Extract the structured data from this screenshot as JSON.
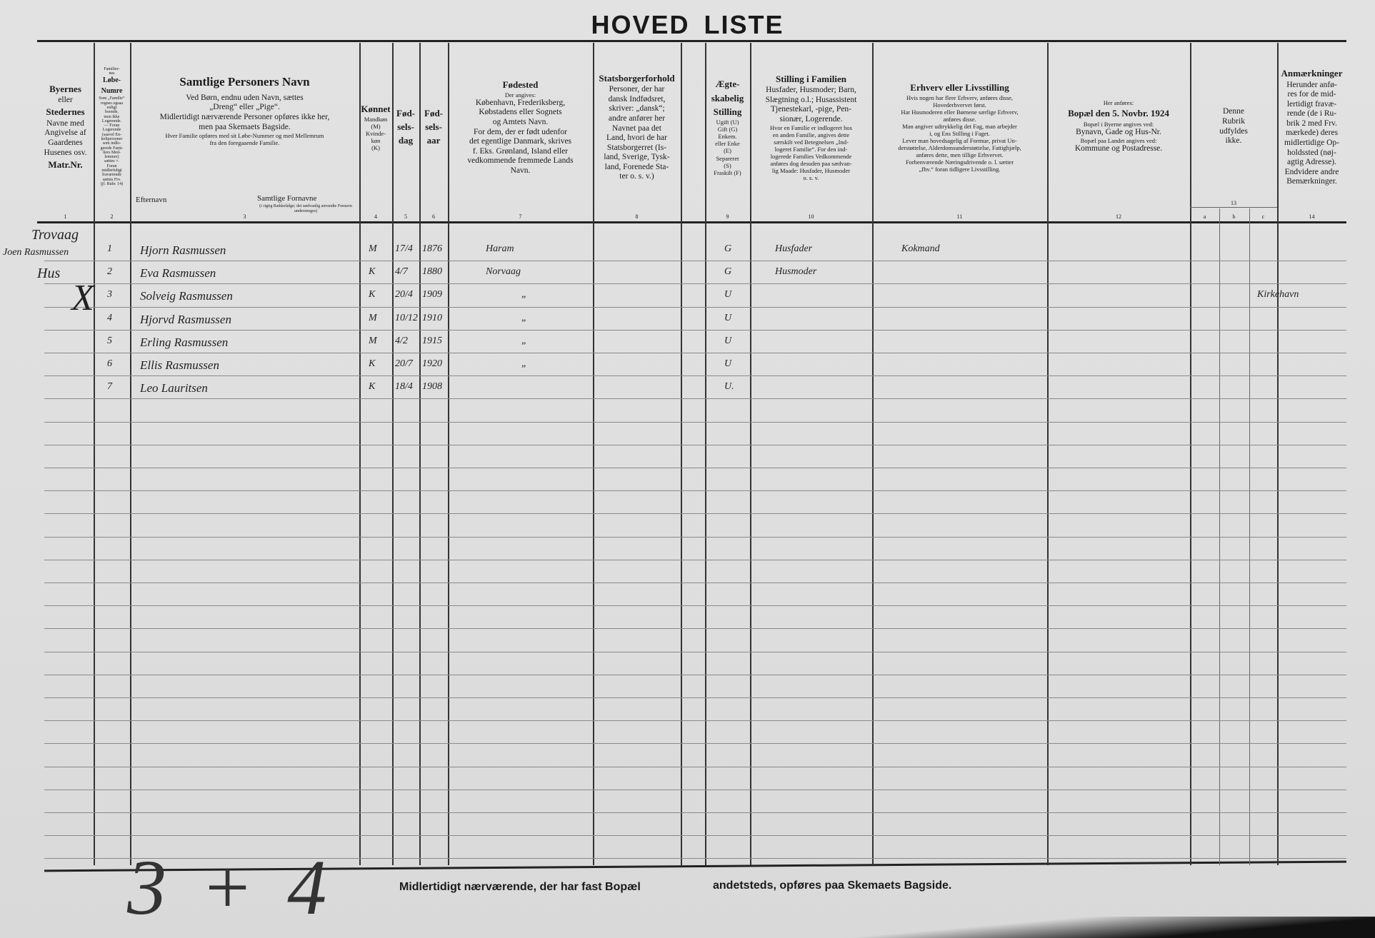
{
  "title": [
    "HOVED",
    "LISTE"
  ],
  "columns": [
    {
      "num": "1",
      "lines": [
        {
          "t": "Byernes",
          "s": "b"
        },
        "eller",
        {
          "t": "Stedernes",
          "s": "b"
        },
        "Navne med",
        "Angivelse af",
        "Gaardenes",
        "Husenes osv.",
        {
          "t": "Matr.Nr.",
          "s": "b"
        }
      ]
    },
    {
      "num": "2",
      "lines": [
        "Familier-",
        "nes",
        {
          "t": "Løbe-",
          "s": "b"
        },
        {
          "t": "Numre",
          "s": "b"
        },
        "Som „Familie“",
        "regnes ogsaa",
        "enligt",
        "boende,",
        "men ikke",
        "Logerende.",
        "— Foran",
        "Logerende",
        "(saavel En-",
        "keltpersoner",
        "som indlo-",
        "gerede Fami-",
        "liers Med-",
        "lemmer)",
        "sættes ×.",
        "Foran",
        "midlertidigt",
        "fraværende",
        "sættes Frv.",
        "(jf. Rubr. 14)"
      ]
    },
    {
      "num": "3",
      "lines": [
        {
          "t": "Samtlige Personers Navn",
          "s": "bb"
        },
        "Ved Børn, endnu uden Navn, sættes",
        "„Dreng“ eller „Pige“.",
        "Midlertidigt nærværende Personer opføres ikke her,",
        "men paa Skemaets Bagside.",
        {
          "t": "Hver Familie opføres med sit Løbe-Nummer og med Mellemrum",
          "s": "s"
        },
        {
          "t": "fra den foregaaende Familie.",
          "s": "s"
        }
      ],
      "sub_left": "Efternavn",
      "sub_right": "Samtlige Fornavne",
      "sub_note": "(i rigtig Rækkefølge; det sædvanlig anvendte Fornavn understreges)"
    },
    {
      "num": "4",
      "lines": [
        {
          "t": "Kønnet",
          "s": "b"
        },
        {
          "t": "Mandkøn",
          "s": "s"
        },
        {
          "t": "(M)",
          "s": "s"
        },
        {
          "t": "Kvinde-",
          "s": "s"
        },
        {
          "t": "køn",
          "s": "s"
        },
        {
          "t": "(K)",
          "s": "s"
        }
      ]
    },
    {
      "num": "5",
      "lines": [
        {
          "t": "Fød-",
          "s": "b"
        },
        {
          "t": "sels-",
          "s": "b"
        },
        {
          "t": "dag",
          "s": "b"
        }
      ]
    },
    {
      "num": "6",
      "lines": [
        {
          "t": "Fød-",
          "s": "b"
        },
        {
          "t": "sels-",
          "s": "b"
        },
        {
          "t": "aar",
          "s": "b"
        }
      ]
    },
    {
      "num": "7",
      "lines": [
        {
          "t": "Fødested",
          "s": "b"
        },
        {
          "t": "Der angives:",
          "s": "s"
        },
        "København, Frederiksberg,",
        "Købstadens eller Sognets",
        "og Amtets Navn.",
        "For dem, der er født udenfor",
        "det egentlige Danmark, skrives",
        "f. Eks. Grønland, Island eller",
        "vedkommende fremmede Lands",
        "Navn."
      ]
    },
    {
      "num": "8",
      "lines": [
        {
          "t": "Statsborgerforhold",
          "s": "b"
        },
        "Personer, der har",
        "dansk Indfødsret,",
        "skriver: „dansk“;",
        "andre anfører her",
        "Navnet paa det",
        "Land, hvori de har",
        "Statsborgerret (Is-",
        "land, Sverige, Tysk-",
        "land, Forenede Sta-",
        "ter o. s. v.)"
      ]
    },
    {
      "num": "",
      "lines": []
    },
    {
      "num": "9",
      "lines": [
        {
          "t": "Ægte-",
          "s": "b"
        },
        {
          "t": "skabelig",
          "s": "b"
        },
        {
          "t": "Stilling",
          "s": "b"
        },
        {
          "t": "Ugift (U)",
          "s": "s"
        },
        {
          "t": "Gift (G)",
          "s": "s"
        },
        {
          "t": "Enkem.",
          "s": "s"
        },
        {
          "t": "eller Enke",
          "s": "s"
        },
        {
          "t": "(E)",
          "s": "s"
        },
        {
          "t": "Separeret",
          "s": "s"
        },
        {
          "t": "(S)",
          "s": "s"
        },
        {
          "t": "Fraskilt (F)",
          "s": "s"
        }
      ]
    },
    {
      "num": "10",
      "lines": [
        {
          "t": "Stilling i Familien",
          "s": "b"
        },
        "Husfader, Husmoder; Barn,",
        "Slægtning o.l.; Husassistent",
        "Tjenestekarl, -pige, Pen-",
        "sionær, Logerende.",
        {
          "t": "Hvor en Familie er indlogeret hos",
          "s": "s"
        },
        {
          "t": "en anden Familie, angives dette",
          "s": "s"
        },
        {
          "t": "særskilt ved Betegnelsen „Ind-",
          "s": "s"
        },
        {
          "t": "logeret Familie“. For den ind-",
          "s": "s"
        },
        {
          "t": "logerede Families Vedkommende",
          "s": "s"
        },
        {
          "t": "anføres dog desuden paa sædvan-",
          "s": "s"
        },
        {
          "t": "lig Maade: Husfader, Husmoder",
          "s": "s"
        },
        {
          "t": "o. s. v.",
          "s": "s"
        }
      ]
    },
    {
      "num": "11",
      "lines": [
        {
          "t": "Erhverv eller Livsstilling",
          "s": "b"
        },
        {
          "t": "Hvis nogen har flere Erhverv, anføres disse,",
          "s": "s"
        },
        {
          "t": "Hovederhvervet først.",
          "s": "s"
        },
        {
          "t": "Har Husmoderen eller Børnene særlige Erhverv,",
          "s": "s"
        },
        {
          "t": "anføres disse.",
          "s": "s"
        },
        {
          "t": "Man angiver udtrykkelig det Fag, man arbejder",
          "s": "s"
        },
        {
          "t": "i, og Ens Stilling i Faget.",
          "s": "s"
        },
        {
          "t": "Lever man hovedsagelig af Formue, privat Un-",
          "s": "s"
        },
        {
          "t": "derstøttelse, Alderdomsunderstøttelse, Fattighjælp,",
          "s": "s"
        },
        {
          "t": "anføres dette, men tillige Erhvervet.",
          "s": "s"
        },
        {
          "t": "Forhenværende Næringsdrivende o. l. sætter",
          "s": "s"
        },
        {
          "t": "„fhv.“ foran tidligere Livsstilling.",
          "s": "s"
        }
      ]
    },
    {
      "num": "12",
      "lines": [
        {
          "t": "Her anføres:",
          "s": "s"
        },
        {
          "t": "Bopæl den 5. Novbr. 1924",
          "s": "b"
        },
        {
          "t": "Bopæl i Byerne angives ved:",
          "s": "s"
        },
        "Bynavn, Gade og Hus-Nr.",
        {
          "t": "Bopæl paa Landet angives ved:",
          "s": "s"
        },
        "Kommune og Postadresse."
      ]
    },
    {
      "num": "13",
      "lines": [
        "Denne",
        "Rubrik",
        "udfyldes",
        "ikke."
      ],
      "subcols": [
        "a",
        "b",
        "c"
      ]
    },
    {
      "num": "14",
      "lines": [
        {
          "t": "Anmærkninger",
          "s": "b"
        },
        "Herunder anfø-",
        "res for de mid-",
        "lertidigt fravæ-",
        "rende (de i Ru-",
        "brik 2 med Frv.",
        "mærkede) deres",
        "midlertidige Op-",
        "holdssted (nøj-",
        "agtig Adresse).",
        "Endvidere andre",
        "Bemærkninger."
      ]
    }
  ],
  "margin_notes": {
    "place": "Trovaag",
    "owner": "Joen Rasmussen",
    "type": "Hus",
    "cross": "X"
  },
  "rows": [
    {
      "nr": "1",
      "name": "Hjorn Rasmussen",
      "sex": "M",
      "day": "17/4",
      "year": "1876",
      "birthplace": "Haram",
      "marital": "G",
      "position": "Husfader",
      "occupation": "Kokmand",
      "remarks": ""
    },
    {
      "nr": "2",
      "name": "Eva Rasmussen",
      "sex": "K",
      "day": "4/7",
      "year": "1880",
      "birthplace": "Norvaag",
      "marital": "G",
      "position": "Husmoder",
      "occupation": "",
      "remarks": ""
    },
    {
      "nr": "3",
      "name": "Solveig Rasmussen",
      "sex": "K",
      "day": "20/4",
      "year": "1909",
      "birthplace": "„",
      "marital": "U",
      "position": "",
      "occupation": "",
      "remarks": "Kirkehavn"
    },
    {
      "nr": "4",
      "name": "Hjorvd Rasmussen",
      "sex": "M",
      "day": "10/12",
      "year": "1910",
      "birthplace": "„",
      "marital": "U",
      "position": "",
      "occupation": "",
      "remarks": ""
    },
    {
      "nr": "5",
      "name": "Erling Rasmussen",
      "sex": "M",
      "day": "4/2",
      "year": "1915",
      "birthplace": "„",
      "marital": "U",
      "position": "",
      "occupation": "",
      "remarks": ""
    },
    {
      "nr": "6",
      "name": "Ellis Rasmussen",
      "sex": "K",
      "day": "20/7",
      "year": "1920",
      "birthplace": "„",
      "marital": "U",
      "position": "",
      "occupation": "",
      "remarks": ""
    },
    {
      "nr": "7",
      "name": "Leo Lauritsen",
      "sex": "K",
      "day": "18/4",
      "year": "1908",
      "birthplace": "",
      "marital": "U.",
      "position": "",
      "occupation": "",
      "remarks": ""
    }
  ],
  "tally": "3 + 4",
  "footer": [
    "Midlertidigt nærværende, der har fast Bopæl",
    "andetsteds, opføres paa Skemaets Bagside."
  ]
}
